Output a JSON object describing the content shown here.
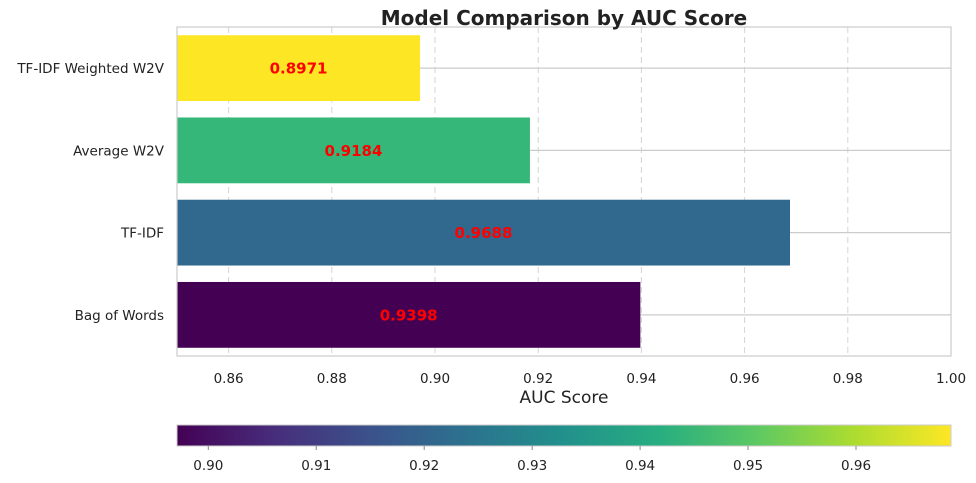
{
  "chart_data": {
    "type": "bar",
    "orientation": "horizontal",
    "title": "Model Comparison by AUC Score",
    "xlabel": "AUC Score",
    "ylabel": "",
    "xlim": [
      0.85,
      1.0
    ],
    "x_ticks": [
      "0.86",
      "0.88",
      "0.90",
      "0.92",
      "0.94",
      "0.96",
      "0.98",
      "1.00"
    ],
    "x_tick_values": [
      0.86,
      0.88,
      0.9,
      0.92,
      0.94,
      0.96,
      0.98,
      1.0
    ],
    "grid": true,
    "categories": [
      "TF-IDF Weighted W2V",
      "Average W2V",
      "TF-IDF",
      "Bag of Words"
    ],
    "values": [
      0.8971,
      0.9184,
      0.9688,
      0.9398
    ],
    "value_labels": [
      "0.8971",
      "0.9184",
      "0.9688",
      "0.9398"
    ],
    "bar_colors": [
      "#fde725",
      "#35b779",
      "#31688e",
      "#440154"
    ],
    "value_label_color": "#ff0000",
    "colorbar": {
      "colormap": "viridis",
      "range": [
        0.8971,
        0.9688
      ],
      "ticks": [
        "0.90",
        "0.91",
        "0.92",
        "0.93",
        "0.94",
        "0.95",
        "0.96"
      ],
      "tick_values": [
        0.9,
        0.91,
        0.92,
        0.93,
        0.94,
        0.95,
        0.96
      ]
    }
  }
}
